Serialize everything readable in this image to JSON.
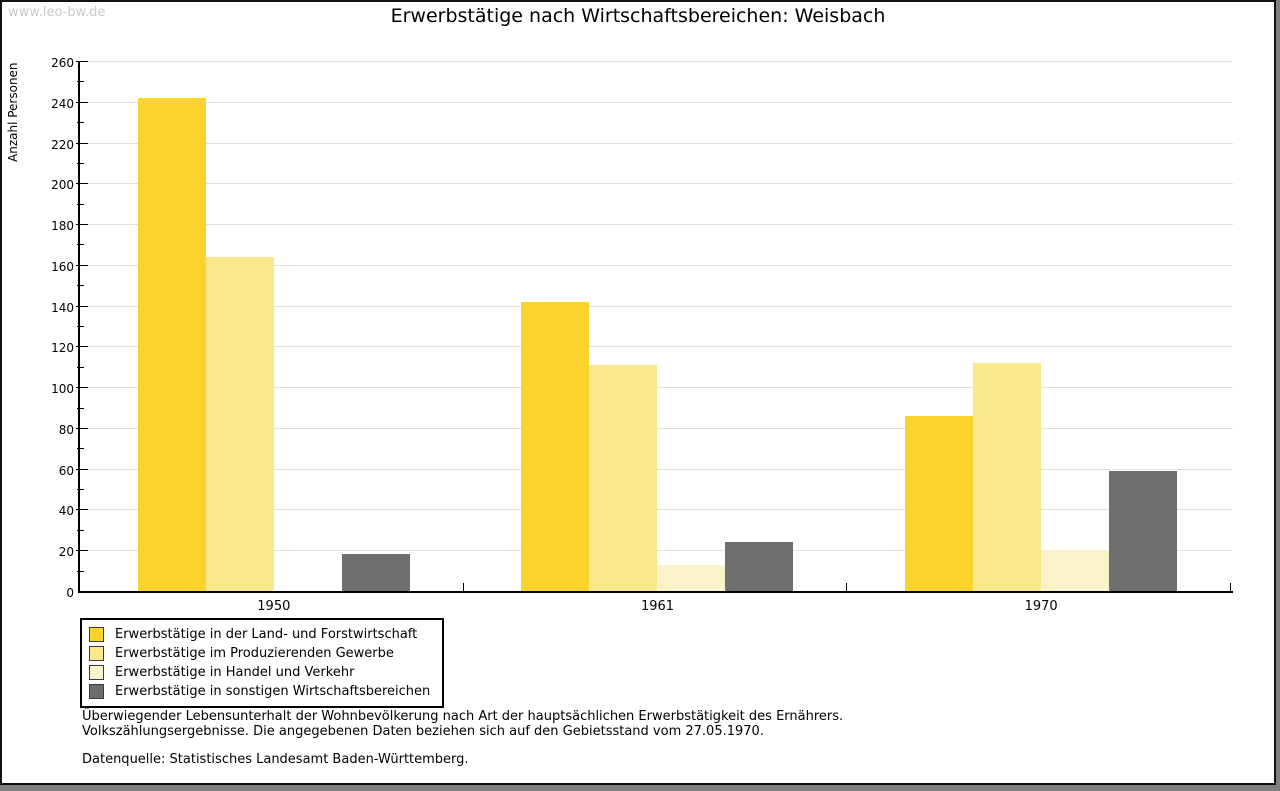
{
  "watermark": "www.leo-bw.de",
  "title": "Erwerbstätige nach Wirtschaftsbereichen: Weisbach",
  "chart_data": {
    "type": "bar",
    "title": "Erwerbstätige nach Wirtschaftsbereichen: Weisbach",
    "xlabel": "",
    "ylabel": "Anzahl Personen",
    "ylim": [
      0,
      260
    ],
    "ytick_step": 20,
    "ytick_minor_step": 10,
    "grid": true,
    "legend_position": "bottom-left",
    "categories": [
      "1950",
      "1961",
      "1970"
    ],
    "series": [
      {
        "name": "Erwerbstätige in der Land- und Forstwirtschaft",
        "color": "#fbd32c",
        "values": [
          242,
          142,
          86
        ]
      },
      {
        "name": "Erwerbstätige im Produzierenden Gewerbe",
        "color": "#fae98c",
        "values": [
          164,
          111,
          112
        ]
      },
      {
        "name": "Erwerbstätige in Handel und Verkehr",
        "color": "#faf2ca",
        "values": [
          0,
          13,
          20
        ]
      },
      {
        "name": "Erwerbstätige in sonstigen Wirtschaftsbereichen",
        "color": "#6e6e6e",
        "values": [
          18,
          24,
          59
        ]
      }
    ]
  },
  "footnotes": {
    "line1": "Überwiegender Lebensunterhalt der Wohnbevölkerung nach Art der hauptsächlichen Erwerbstätigkeit des Ernährers.",
    "line2": "Volkszählungsergebnisse. Die angegebenen Daten beziehen sich auf den Gebietsstand vom 27.05.1970.",
    "source": "Datenquelle: Statistisches Landesamt Baden-Württemberg."
  },
  "colors": {
    "gridline": "#e0e0e0",
    "axis": "#000000",
    "watermark": "#c9c9c9",
    "frame_outer": "#7f7f7f"
  }
}
